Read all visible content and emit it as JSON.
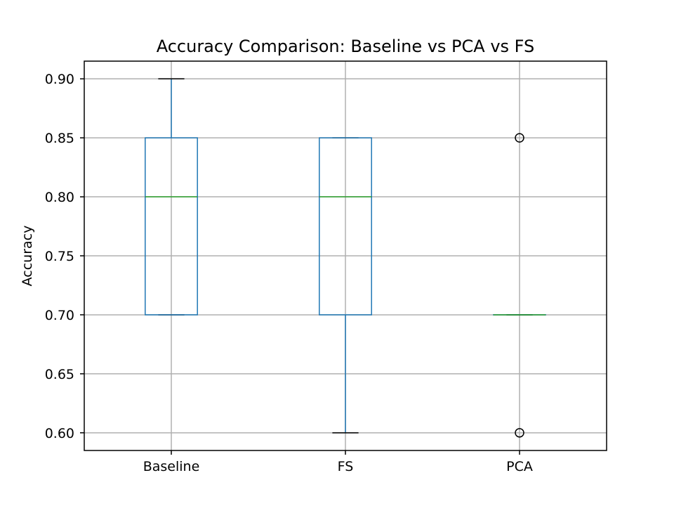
{
  "chart_data": {
    "type": "boxplot",
    "title": "Accuracy Comparison: Baseline vs PCA vs FS",
    "xlabel": "",
    "ylabel": "Accuracy",
    "ylim": [
      0.585,
      0.915
    ],
    "grid": true,
    "yticks": [
      0.6,
      0.65,
      0.7,
      0.75,
      0.8,
      0.85,
      0.9
    ],
    "ytick_labels": [
      "0.60",
      "0.65",
      "0.70",
      "0.75",
      "0.80",
      "0.85",
      "0.90"
    ],
    "categories": [
      "Baseline",
      "FS",
      "PCA"
    ],
    "boxes": [
      {
        "name": "Baseline",
        "whisker_low": 0.7,
        "q1": 0.7,
        "median": 0.8,
        "q3": 0.85,
        "whisker_high": 0.9,
        "outliers": []
      },
      {
        "name": "FS",
        "whisker_low": 0.6,
        "q1": 0.7,
        "median": 0.8,
        "q3": 0.85,
        "whisker_high": 0.85,
        "outliers": []
      },
      {
        "name": "PCA",
        "whisker_low": 0.7,
        "q1": 0.7,
        "median": 0.7,
        "q3": 0.7,
        "whisker_high": 0.7,
        "outliers": [
          0.85,
          0.6
        ]
      }
    ],
    "colors": {
      "box": "#1f77b4",
      "median": "#2ca02c",
      "cap": "#000000",
      "outlier": "#000000"
    }
  }
}
